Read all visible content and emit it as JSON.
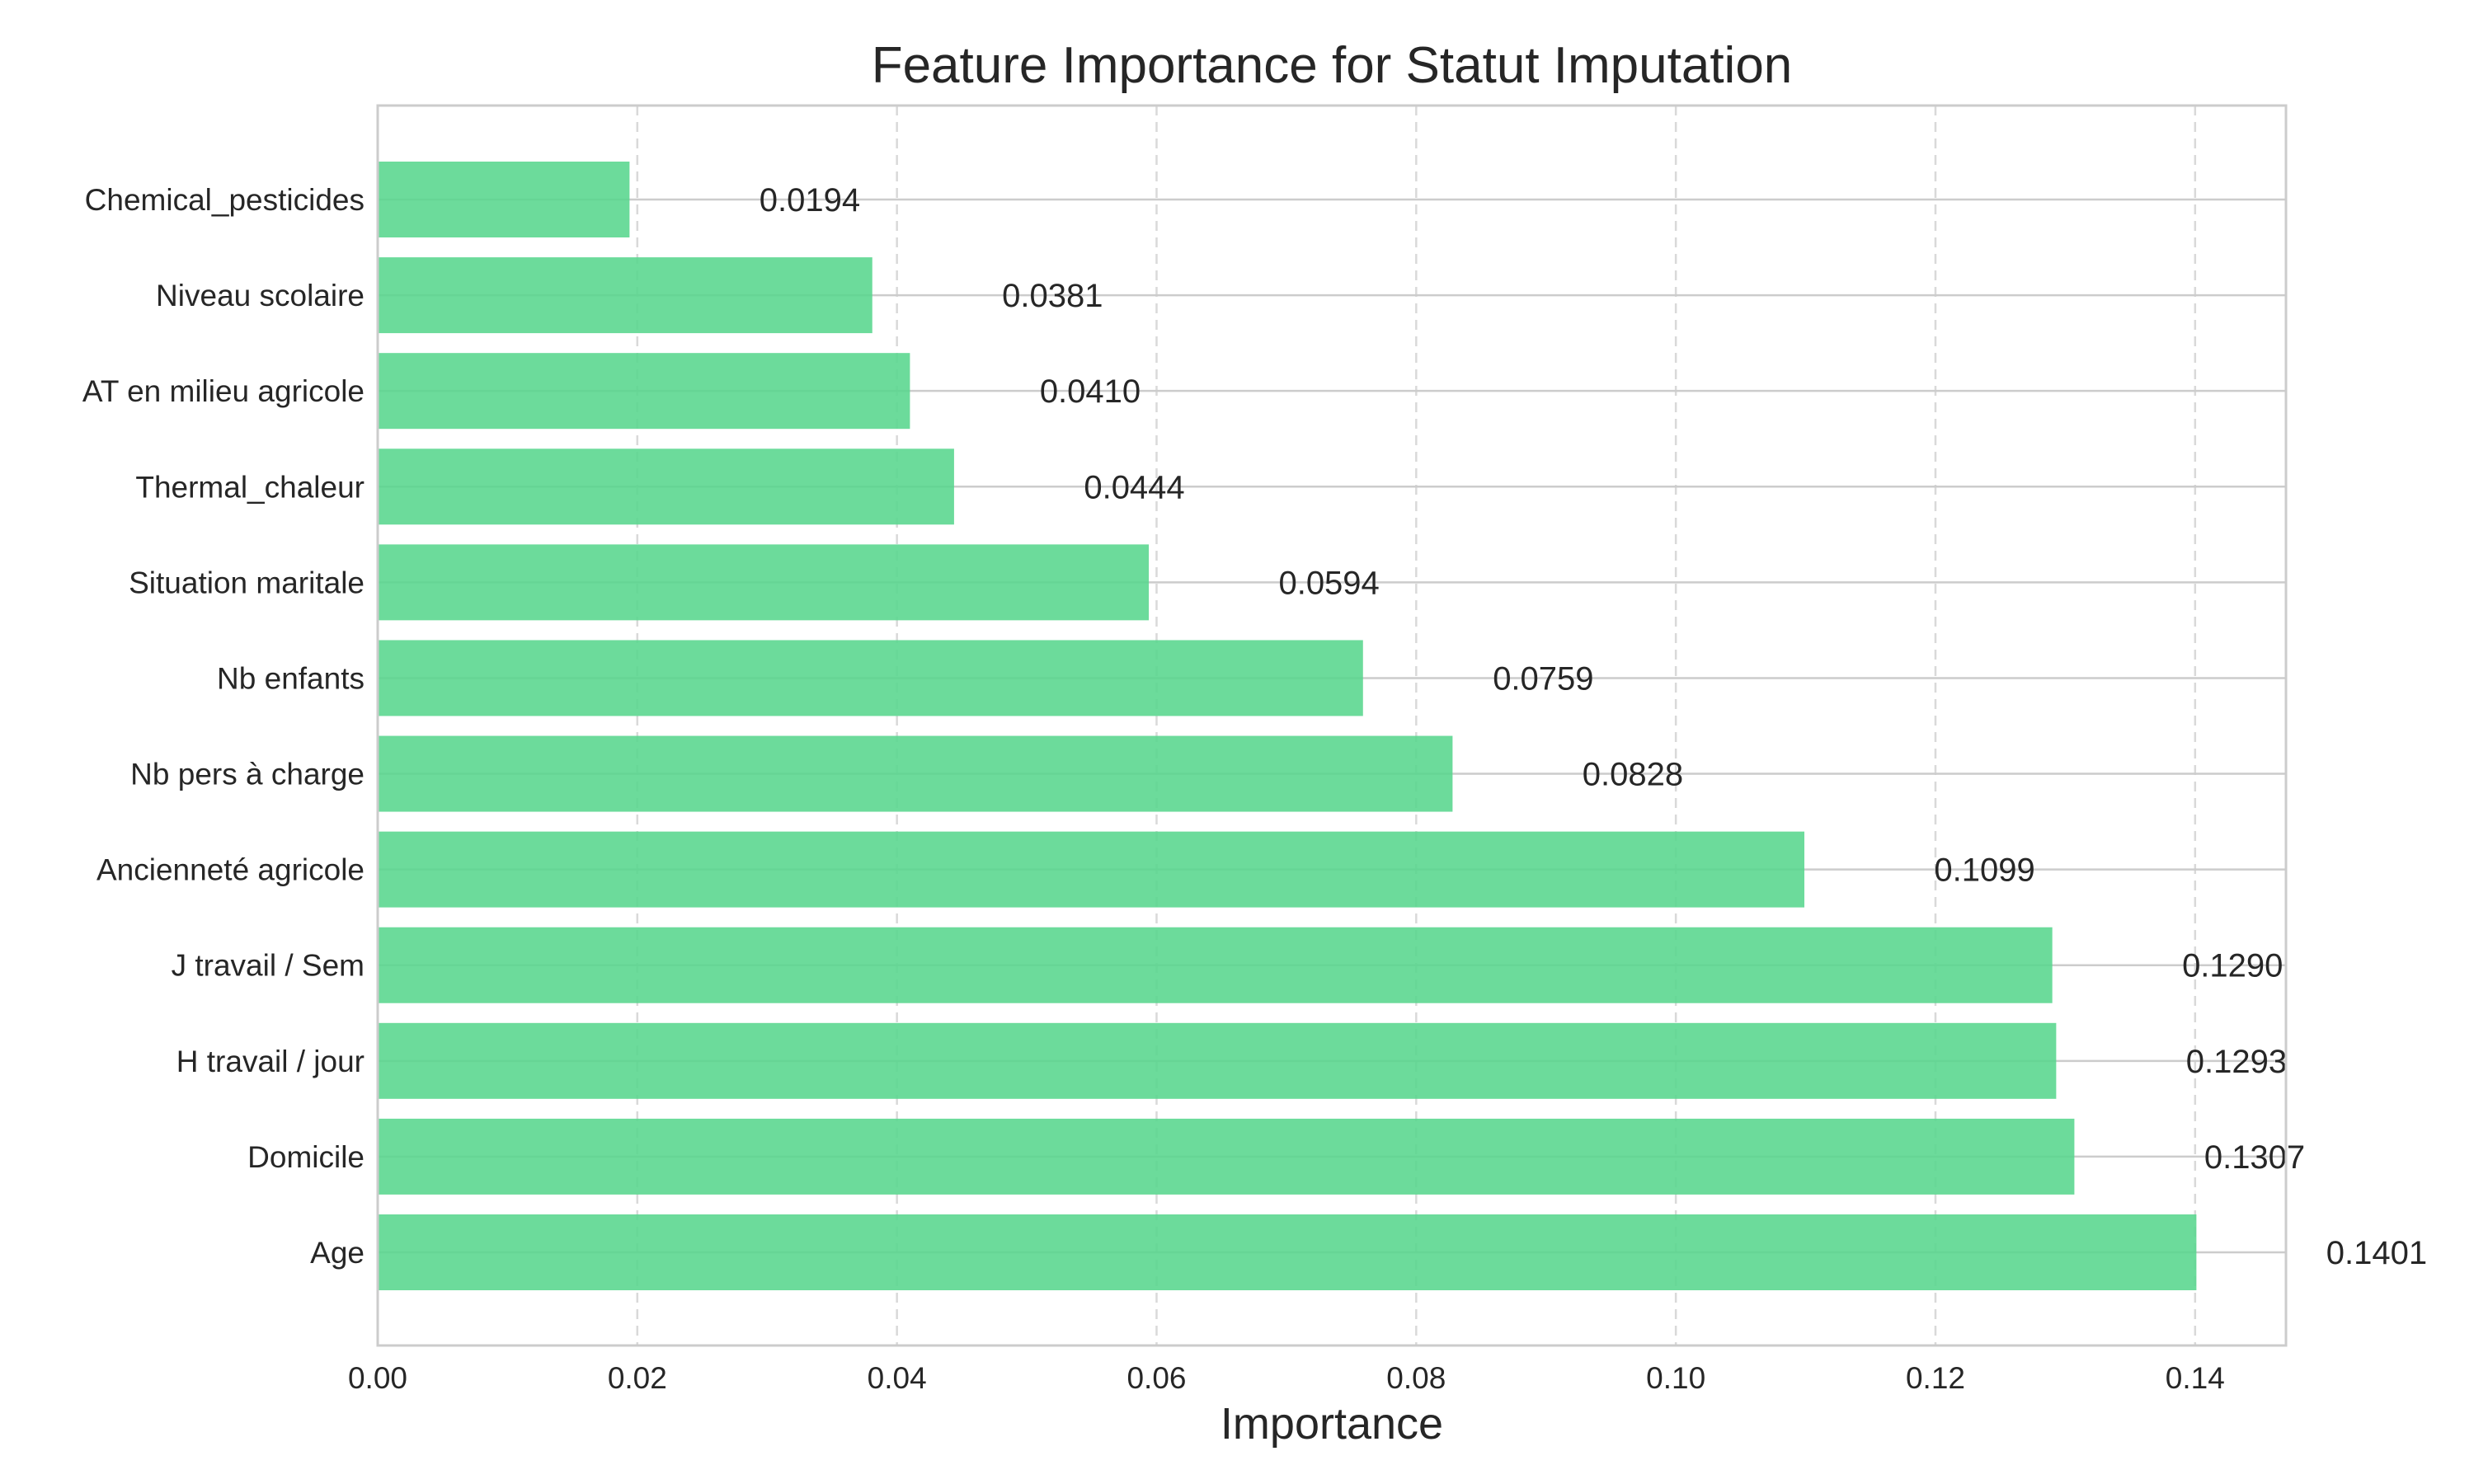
{
  "chart_data": {
    "type": "bar",
    "orientation": "horizontal",
    "title": "Feature Importance for Statut Imputation",
    "xlabel": "Importance",
    "ylabel": "",
    "xlim": [
      0,
      0.147
    ],
    "xticks": [
      0.0,
      0.02,
      0.04,
      0.06,
      0.08,
      0.1,
      0.12,
      0.14
    ],
    "xtick_labels": [
      "0.00",
      "0.02",
      "0.04",
      "0.06",
      "0.08",
      "0.10",
      "0.12",
      "0.14"
    ],
    "categories": [
      "Chemical_pesticides",
      "Niveau scolaire",
      "AT en milieu agricole",
      "Thermal_chaleur",
      "Situation maritale",
      "Nb enfants",
      "Nb pers à charge",
      "Ancienneté agricole",
      "J travail / Sem",
      "H travail / jour",
      "Domicile",
      "Age"
    ],
    "values": [
      0.0194,
      0.0381,
      0.041,
      0.0444,
      0.0594,
      0.0759,
      0.0828,
      0.1099,
      0.129,
      0.1293,
      0.1307,
      0.1401
    ],
    "value_labels": [
      "0.0194",
      "0.0381",
      "0.0410",
      "0.0444",
      "0.0594",
      "0.0759",
      "0.0828",
      "0.1099",
      "0.1290",
      "0.1293",
      "0.1307",
      "0.1401"
    ],
    "bar_color": "#58d68d",
    "grid": true,
    "legend": "none"
  }
}
